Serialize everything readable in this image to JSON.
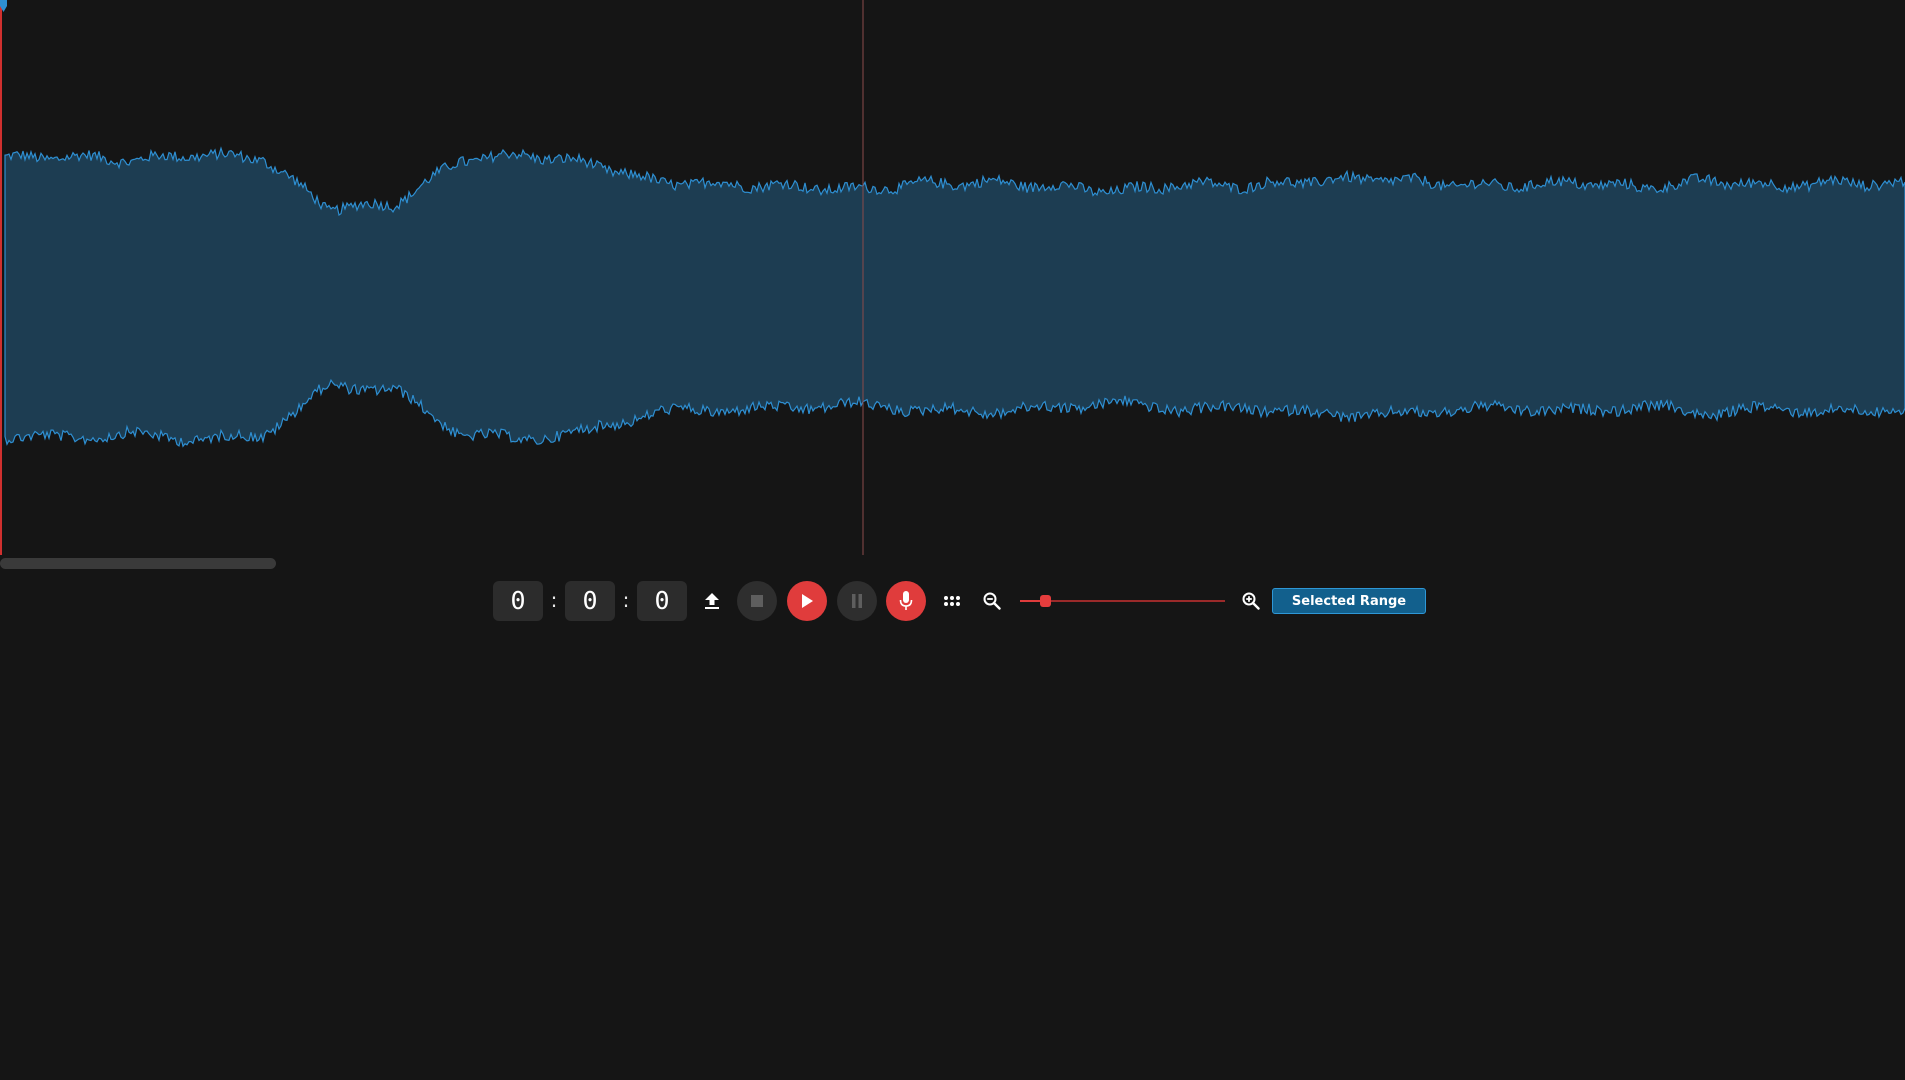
{
  "waveform": {
    "amplitude_envelope": [
      0.75,
      0.76,
      0.74,
      0.77,
      0.75,
      0.48,
      0.5,
      0.74,
      0.77,
      0.72,
      0.62,
      0.61,
      0.6,
      0.58,
      0.61,
      0.62,
      0.6,
      0.57,
      0.61,
      0.6,
      0.63,
      0.64,
      0.61,
      0.6,
      0.62,
      0.59,
      0.63,
      0.6,
      0.62,
      0.61
    ],
    "fill_color": "#1d3d52",
    "stroke_color": "#2e8fd2",
    "playhead_color": "#d0302f",
    "cursor_color": "#8a4a4a",
    "playhead_marker_color": "#2e8fd2",
    "duration_fraction_visible": 0.145
  },
  "timer": {
    "hours": "0",
    "minutes": "0",
    "seconds": "0",
    "separator": ":"
  },
  "controls": {
    "upload_icon": "upload-icon",
    "stop_icon": "stop-icon",
    "play_icon": "play-icon",
    "pause_icon": "pause-icon",
    "record_icon": "microphone-icon",
    "more_icon": "dots-grid-icon",
    "zoom_out_icon": "zoom-out-icon",
    "zoom_in_icon": "zoom-in-icon",
    "zoom_level": 0.12,
    "selected_range_label": "Selected Range"
  },
  "colors": {
    "background": "#151515",
    "accent_red": "#e03c3c",
    "accent_blue": "#12608d",
    "button_gray": "#2e2e2e"
  }
}
